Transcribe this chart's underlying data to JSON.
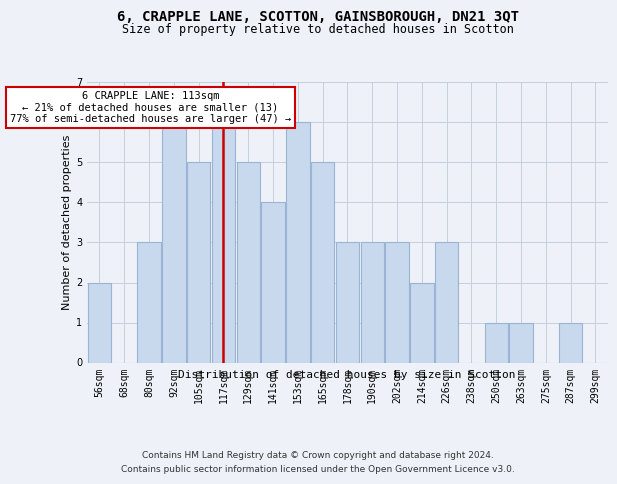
{
  "title": "6, CRAPPLE LANE, SCOTTON, GAINSBOROUGH, DN21 3QT",
  "subtitle": "Size of property relative to detached houses in Scotton",
  "xlabel": "Distribution of detached houses by size in Scotton",
  "ylabel": "Number of detached properties",
  "bar_color": "#c8d9ed",
  "bar_edgecolor": "#9ab4d4",
  "annotation_line_color": "#cc0000",
  "annotation_box_edgecolor": "#cc0000",
  "categories": [
    "56sqm",
    "68sqm",
    "80sqm",
    "92sqm",
    "105sqm",
    "117sqm",
    "129sqm",
    "141sqm",
    "153sqm",
    "165sqm",
    "178sqm",
    "190sqm",
    "202sqm",
    "214sqm",
    "226sqm",
    "238sqm",
    "250sqm",
    "263sqm",
    "275sqm",
    "287sqm",
    "299sqm"
  ],
  "values": [
    2,
    0,
    3,
    6,
    5,
    6,
    5,
    4,
    6,
    5,
    3,
    3,
    3,
    2,
    3,
    0,
    1,
    1,
    0,
    1,
    0
  ],
  "red_line_index": 5,
  "annotation_line1": "6 CRAPPLE LANE: 113sqm",
  "annotation_line2": "← 21% of detached houses are smaller (13)",
  "annotation_line3": "77% of semi-detached houses are larger (47) →",
  "ylim_max": 7,
  "yticks": [
    0,
    1,
    2,
    3,
    4,
    5,
    6,
    7
  ],
  "footer_line1": "Contains HM Land Registry data © Crown copyright and database right 2024.",
  "footer_line2": "Contains public sector information licensed under the Open Government Licence v3.0.",
  "bg_color": "#eef2f8",
  "grid_color": "#c5cedd",
  "title_fontsize": 10,
  "subtitle_fontsize": 8.5,
  "ylabel_fontsize": 8,
  "xlabel_fontsize": 8,
  "tick_fontsize": 7,
  "footer_fontsize": 6.5,
  "ann_fontsize": 7.5
}
